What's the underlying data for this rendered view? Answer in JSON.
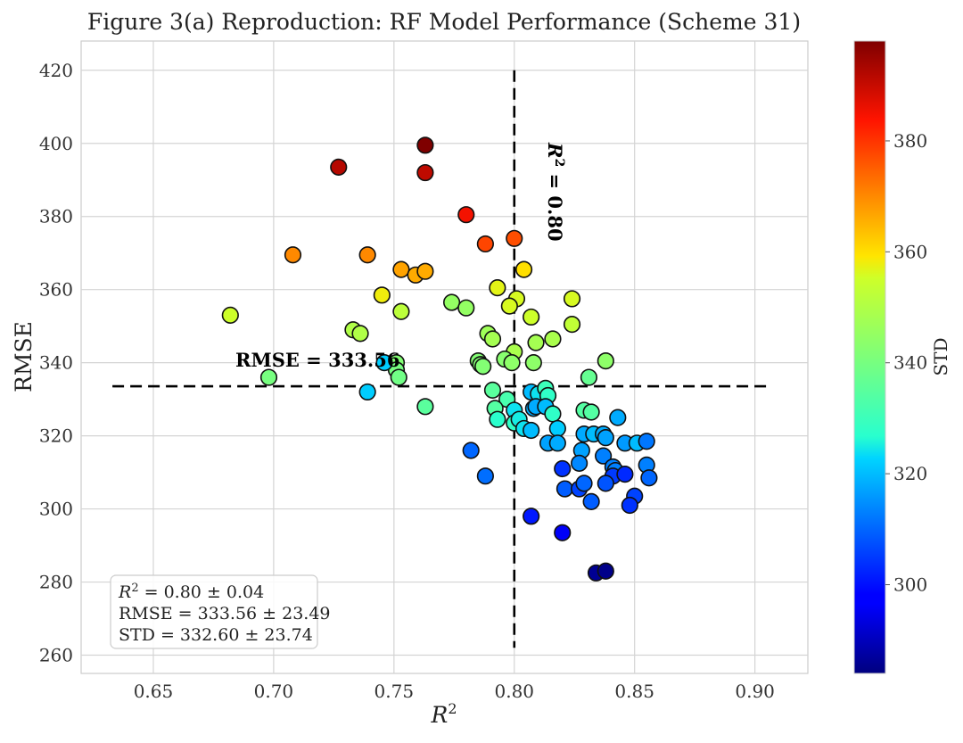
{
  "chart_data": {
    "type": "scatter",
    "title": "Figure 3(a) Reproduction: RF Model Performance (Scheme 31)",
    "xlabel": "R",
    "xlabel_sup": "2",
    "ylabel": "RMSE",
    "xlim": [
      0.62,
      0.922
    ],
    "ylim": [
      255,
      428
    ],
    "xticks": [
      "0.65",
      "0.70",
      "0.75",
      "0.80",
      "0.85",
      "0.90"
    ],
    "yticks": [
      "260",
      "280",
      "300",
      "320",
      "340",
      "360",
      "380",
      "400",
      "420"
    ],
    "grid": true,
    "colorbar": {
      "label": "STD",
      "range": [
        284,
        398
      ],
      "ticks": [
        "300",
        "320",
        "340",
        "360",
        "380"
      ],
      "colormap": "jet"
    },
    "reference_lines": {
      "rmse_value": 333.56,
      "rmse_label": "RMSE = 333.56",
      "r2_value": 0.8,
      "r2_label_prefix": "R",
      "r2_label_sup": "2",
      "r2_label_suffix": " = 0.80"
    },
    "stats": {
      "line1_prefix": "R",
      "line1_sup": "2",
      "line1_suffix": " = 0.80 ± 0.04",
      "line2": "RMSE = 333.56 ± 23.49",
      "line3": "STD = 332.60 ± 23.74"
    },
    "points": [
      {
        "x": 0.763,
        "y": 399.5,
        "c": 398
      },
      {
        "x": 0.727,
        "y": 393.5,
        "c": 392
      },
      {
        "x": 0.763,
        "y": 392,
        "c": 391
      },
      {
        "x": 0.78,
        "y": 380.5,
        "c": 385
      },
      {
        "x": 0.788,
        "y": 372.5,
        "c": 378
      },
      {
        "x": 0.8,
        "y": 374,
        "c": 377
      },
      {
        "x": 0.708,
        "y": 369.5,
        "c": 370
      },
      {
        "x": 0.739,
        "y": 369.5,
        "c": 370
      },
      {
        "x": 0.753,
        "y": 365.5,
        "c": 367
      },
      {
        "x": 0.759,
        "y": 364,
        "c": 366
      },
      {
        "x": 0.763,
        "y": 365,
        "c": 366
      },
      {
        "x": 0.804,
        "y": 365.5,
        "c": 360
      },
      {
        "x": 0.682,
        "y": 353,
        "c": 355
      },
      {
        "x": 0.745,
        "y": 358.5,
        "c": 358
      },
      {
        "x": 0.793,
        "y": 360.5,
        "c": 357
      },
      {
        "x": 0.801,
        "y": 357.5,
        "c": 356
      },
      {
        "x": 0.798,
        "y": 355.5,
        "c": 356
      },
      {
        "x": 0.824,
        "y": 357.5,
        "c": 356
      },
      {
        "x": 0.753,
        "y": 354,
        "c": 352
      },
      {
        "x": 0.807,
        "y": 352.5,
        "c": 355
      },
      {
        "x": 0.824,
        "y": 350.5,
        "c": 353
      },
      {
        "x": 0.733,
        "y": 349,
        "c": 350
      },
      {
        "x": 0.736,
        "y": 348,
        "c": 350
      },
      {
        "x": 0.774,
        "y": 356.5,
        "c": 345
      },
      {
        "x": 0.78,
        "y": 355,
        "c": 345
      },
      {
        "x": 0.789,
        "y": 348,
        "c": 347
      },
      {
        "x": 0.791,
        "y": 346.5,
        "c": 348
      },
      {
        "x": 0.8,
        "y": 343,
        "c": 349
      },
      {
        "x": 0.809,
        "y": 345.5,
        "c": 348
      },
      {
        "x": 0.816,
        "y": 346.5,
        "c": 349
      },
      {
        "x": 0.838,
        "y": 340.5,
        "c": 344
      },
      {
        "x": 0.751,
        "y": 340,
        "c": 342
      },
      {
        "x": 0.785,
        "y": 340.5,
        "c": 342
      },
      {
        "x": 0.786,
        "y": 339.5,
        "c": 342
      },
      {
        "x": 0.787,
        "y": 339,
        "c": 342
      },
      {
        "x": 0.796,
        "y": 341,
        "c": 343
      },
      {
        "x": 0.799,
        "y": 340,
        "c": 344
      },
      {
        "x": 0.808,
        "y": 340,
        "c": 344
      },
      {
        "x": 0.751,
        "y": 338,
        "c": 340
      },
      {
        "x": 0.752,
        "y": 336,
        "c": 339
      },
      {
        "x": 0.698,
        "y": 336,
        "c": 340
      },
      {
        "x": 0.831,
        "y": 336,
        "c": 337
      },
      {
        "x": 0.746,
        "y": 340,
        "c": 322
      },
      {
        "x": 0.739,
        "y": 332,
        "c": 322
      },
      {
        "x": 0.763,
        "y": 328,
        "c": 335
      },
      {
        "x": 0.791,
        "y": 332.5,
        "c": 335
      },
      {
        "x": 0.797,
        "y": 330,
        "c": 332
      },
      {
        "x": 0.807,
        "y": 332,
        "c": 320
      },
      {
        "x": 0.81,
        "y": 331.5,
        "c": 324
      },
      {
        "x": 0.813,
        "y": 333,
        "c": 330
      },
      {
        "x": 0.814,
        "y": 331,
        "c": 328
      },
      {
        "x": 0.792,
        "y": 327.5,
        "c": 334
      },
      {
        "x": 0.8,
        "y": 327,
        "c": 324
      },
      {
        "x": 0.808,
        "y": 327.5,
        "c": 318
      },
      {
        "x": 0.809,
        "y": 328,
        "c": 318
      },
      {
        "x": 0.813,
        "y": 328,
        "c": 320
      },
      {
        "x": 0.816,
        "y": 326,
        "c": 328
      },
      {
        "x": 0.829,
        "y": 327,
        "c": 334
      },
      {
        "x": 0.832,
        "y": 326.5,
        "c": 334
      },
      {
        "x": 0.793,
        "y": 324.5,
        "c": 327
      },
      {
        "x": 0.8,
        "y": 323.5,
        "c": 328
      },
      {
        "x": 0.802,
        "y": 324.5,
        "c": 325
      },
      {
        "x": 0.804,
        "y": 322,
        "c": 324
      },
      {
        "x": 0.807,
        "y": 321.5,
        "c": 320
      },
      {
        "x": 0.818,
        "y": 322,
        "c": 322
      },
      {
        "x": 0.843,
        "y": 325,
        "c": 318
      },
      {
        "x": 0.829,
        "y": 320.5,
        "c": 318
      },
      {
        "x": 0.833,
        "y": 320.5,
        "c": 320
      },
      {
        "x": 0.837,
        "y": 320.5,
        "c": 318
      },
      {
        "x": 0.838,
        "y": 319.5,
        "c": 317
      },
      {
        "x": 0.814,
        "y": 318,
        "c": 317
      },
      {
        "x": 0.818,
        "y": 318,
        "c": 318
      },
      {
        "x": 0.846,
        "y": 318,
        "c": 316
      },
      {
        "x": 0.851,
        "y": 318,
        "c": 320
      },
      {
        "x": 0.855,
        "y": 318.5,
        "c": 312
      },
      {
        "x": 0.828,
        "y": 316,
        "c": 317
      },
      {
        "x": 0.837,
        "y": 314.5,
        "c": 313
      },
      {
        "x": 0.827,
        "y": 312.5,
        "c": 314
      },
      {
        "x": 0.841,
        "y": 311.5,
        "c": 313
      },
      {
        "x": 0.842,
        "y": 310.5,
        "c": 313
      },
      {
        "x": 0.855,
        "y": 312,
        "c": 313
      },
      {
        "x": 0.782,
        "y": 316,
        "c": 310
      },
      {
        "x": 0.788,
        "y": 309,
        "c": 311
      },
      {
        "x": 0.82,
        "y": 311,
        "c": 304
      },
      {
        "x": 0.841,
        "y": 309,
        "c": 305
      },
      {
        "x": 0.846,
        "y": 309.5,
        "c": 303
      },
      {
        "x": 0.856,
        "y": 308.5,
        "c": 310
      },
      {
        "x": 0.821,
        "y": 305.5,
        "c": 309
      },
      {
        "x": 0.827,
        "y": 305.5,
        "c": 306
      },
      {
        "x": 0.829,
        "y": 307,
        "c": 310
      },
      {
        "x": 0.838,
        "y": 307,
        "c": 308
      },
      {
        "x": 0.832,
        "y": 302,
        "c": 309
      },
      {
        "x": 0.85,
        "y": 303.5,
        "c": 306
      },
      {
        "x": 0.848,
        "y": 301,
        "c": 304
      },
      {
        "x": 0.807,
        "y": 298,
        "c": 301
      },
      {
        "x": 0.82,
        "y": 293.5,
        "c": 296
      },
      {
        "x": 0.834,
        "y": 282.5,
        "c": 286
      },
      {
        "x": 0.838,
        "y": 283,
        "c": 285
      }
    ]
  }
}
